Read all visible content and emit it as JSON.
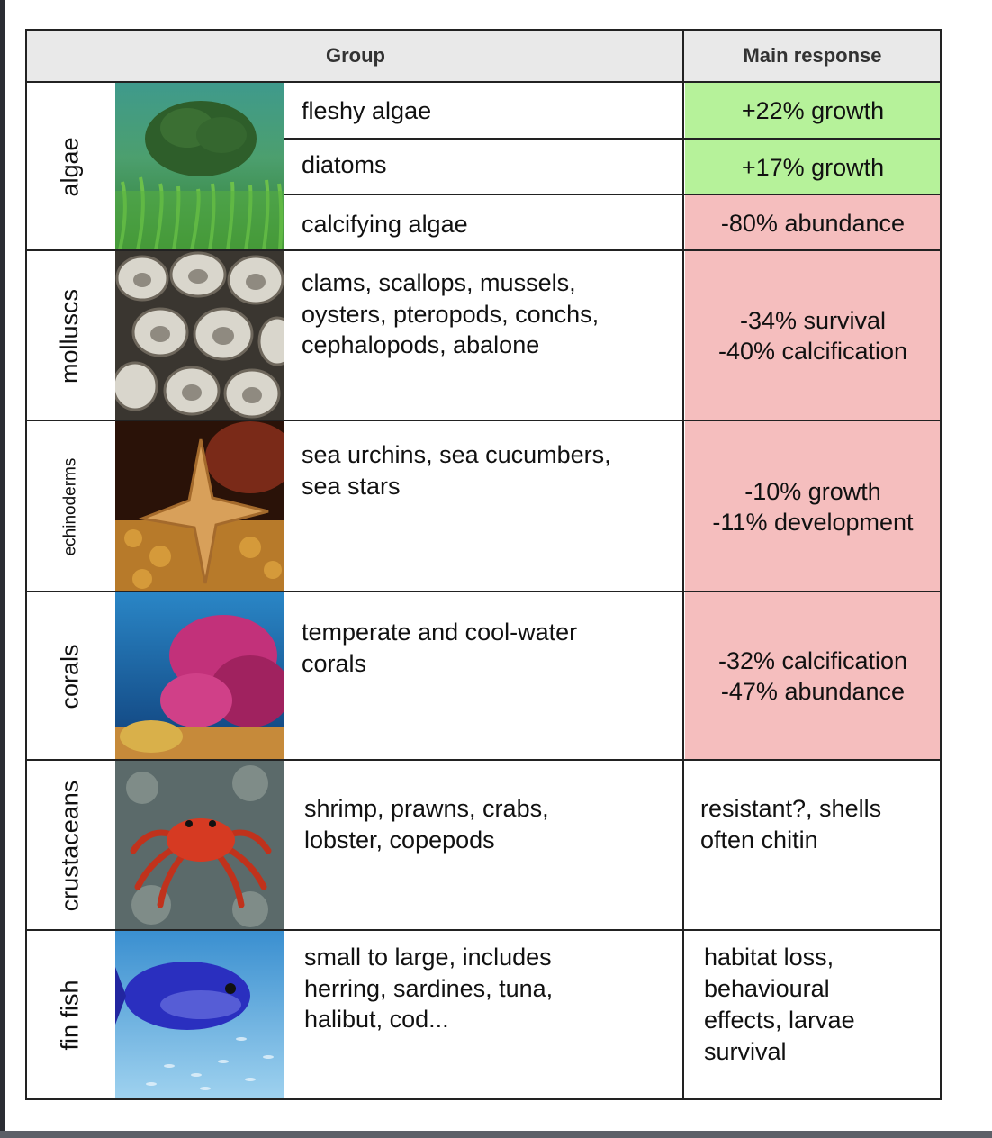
{
  "header": {
    "group_label": "Group",
    "response_label": "Main response"
  },
  "algae": {
    "group": "algae",
    "rows": [
      {
        "name": "fleshy algae",
        "response": "+22% growth"
      },
      {
        "name": "diatoms",
        "response": "+17% growth"
      },
      {
        "name": "calcifying algae",
        "response": "-80% abundance"
      }
    ]
  },
  "molluscs": {
    "group": "molluscs",
    "lines": [
      "clams, scallops, mussels,",
      "oysters, pteropods, conchs,",
      "cephalopods, abalone"
    ],
    "response": [
      "-34% survival",
      "-40% calcification"
    ]
  },
  "echinoderms": {
    "group": "echinoderms",
    "lines": [
      "sea urchins, sea cucumbers,",
      "sea stars"
    ],
    "response": [
      "-10% growth",
      "-11% development"
    ]
  },
  "corals": {
    "group": "corals",
    "lines": [
      "temperate and cool-water",
      "corals"
    ],
    "response": [
      "-32% calcification",
      "-47% abundance"
    ]
  },
  "crustaceans": {
    "group": "crustaceans",
    "lines": [
      "shrimp, prawns, crabs,",
      "lobster, copepods"
    ],
    "response": [
      "resistant?, shells",
      "often chitin"
    ]
  },
  "finfish": {
    "group": "fin fish",
    "lines": [
      "small to large, includes",
      "herring, sardines, tuna,",
      "halibut, cod..."
    ],
    "response": [
      "habitat loss,",
      "behavioural",
      "effects, larvae",
      "survival"
    ]
  },
  "colors": {
    "positive": "#b6f29a",
    "negative": "#f5bebe",
    "header": "#e9e9e9"
  }
}
